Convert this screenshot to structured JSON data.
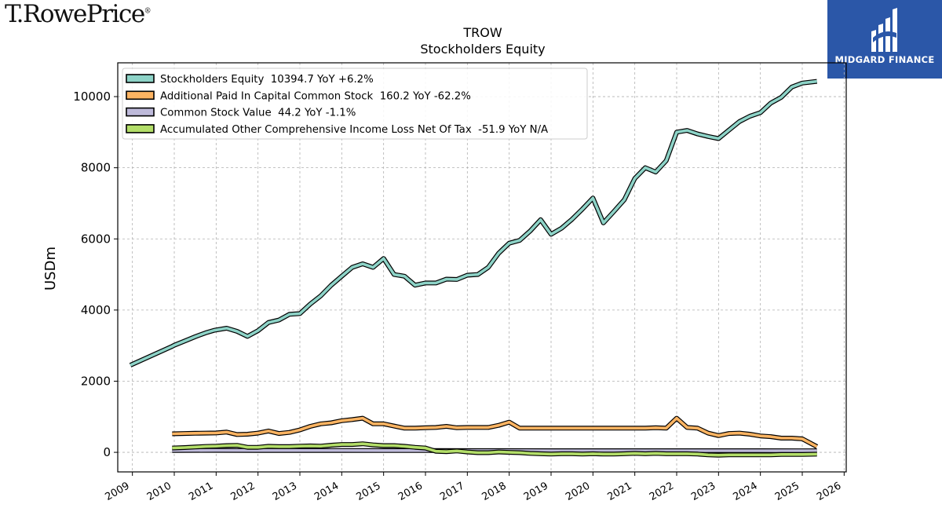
{
  "branding": {
    "left_logo": "T.RowePrice",
    "left_logo_mark": "®",
    "right_logo": "MIDGARD FINANCE"
  },
  "chart_data": {
    "type": "line",
    "title": "TROW",
    "subtitle": "Stockholders  Equity",
    "xlabel": "",
    "ylabel": "USDm",
    "xlim": [
      2008.65,
      2026.05
    ],
    "ylim": [
      -550,
      10950
    ],
    "xticks": [
      "2009",
      "2010",
      "2011",
      "2012",
      "2013",
      "2014",
      "2015",
      "2016",
      "2017",
      "2018",
      "2019",
      "2020",
      "2021",
      "2022",
      "2023",
      "2024",
      "2025",
      "2026"
    ],
    "yticks": [
      "0",
      "2000",
      "4000",
      "6000",
      "8000",
      "10000"
    ],
    "grid": true,
    "legend_position": "upper-left",
    "series": [
      {
        "name": "Stockholders Equity  10394.7 YoY +6.2%",
        "color": "#8dd3c7",
        "x": [
          2008.95,
          2009.95,
          2010.0,
          2010.25,
          2010.5,
          2010.75,
          2010.95,
          2011.25,
          2011.5,
          2011.75,
          2012.0,
          2012.25,
          2012.5,
          2012.75,
          2013.0,
          2013.25,
          2013.5,
          2013.75,
          2014.0,
          2014.25,
          2014.5,
          2014.75,
          2015.0,
          2015.25,
          2015.5,
          2015.75,
          2016.0,
          2016.25,
          2016.5,
          2016.75,
          2017.0,
          2017.25,
          2017.5,
          2017.75,
          2018.0,
          2018.25,
          2018.5,
          2018.75,
          2019.0,
          2019.25,
          2019.5,
          2019.75,
          2020.0,
          2020.25,
          2020.5,
          2020.75,
          2021.0,
          2021.25,
          2021.5,
          2021.75,
          2022.0,
          2022.25,
          2022.5,
          2022.75,
          2023.0,
          2023.25,
          2023.5,
          2023.75,
          2024.0,
          2024.25,
          2024.5,
          2024.75,
          2025.0,
          2025.35
        ],
        "y": [
          2450,
          2980,
          3010,
          3130,
          3250,
          3360,
          3430,
          3490,
          3400,
          3260,
          3420,
          3650,
          3720,
          3880,
          3900,
          4170,
          4400,
          4700,
          4950,
          5200,
          5300,
          5200,
          5450,
          5000,
          4950,
          4700,
          4760,
          4760,
          4870,
          4860,
          4980,
          5000,
          5200,
          5600,
          5880,
          5960,
          6220,
          6540,
          6130,
          6300,
          6550,
          6840,
          7150,
          6450,
          6770,
          7100,
          7700,
          8000,
          7880,
          8200,
          9000,
          9050,
          8950,
          8880,
          8820,
          9060,
          9300,
          9450,
          9550,
          9820,
          9980,
          10270,
          10380,
          10430
        ]
      },
      {
        "name": "Additional Paid In Capital Common Stock  160.2 YoY -62.2%",
        "color": "#fdb462",
        "x": [
          2009.95,
          2010.25,
          2010.5,
          2010.75,
          2011.0,
          2011.25,
          2011.5,
          2011.75,
          2012.0,
          2012.25,
          2012.5,
          2012.75,
          2013.0,
          2013.25,
          2013.5,
          2013.75,
          2014.0,
          2014.25,
          2014.5,
          2014.75,
          2015.0,
          2015.25,
          2015.5,
          2015.75,
          2016.0,
          2016.25,
          2016.5,
          2016.75,
          2017.0,
          2017.25,
          2017.5,
          2017.75,
          2018.0,
          2018.25,
          2018.5,
          2018.75,
          2019.0,
          2019.25,
          2019.5,
          2019.75,
          2020.0,
          2020.25,
          2020.5,
          2020.75,
          2021.0,
          2021.25,
          2021.5,
          2021.75,
          2022.0,
          2022.25,
          2022.5,
          2022.75,
          2023.0,
          2023.25,
          2023.5,
          2023.75,
          2024.0,
          2024.25,
          2024.5,
          2024.75,
          2025.0,
          2025.35
        ],
        "y": [
          520,
          530,
          535,
          540,
          545,
          570,
          500,
          510,
          540,
          600,
          530,
          560,
          630,
          730,
          800,
          830,
          890,
          920,
          960,
          800,
          800,
          740,
          680,
          680,
          690,
          700,
          730,
          690,
          700,
          700,
          700,
          760,
          850,
          680,
          680,
          680,
          680,
          680,
          680,
          680,
          680,
          680,
          680,
          680,
          680,
          680,
          690,
          680,
          960,
          700,
          680,
          540,
          470,
          530,
          540,
          510,
          460,
          440,
          400,
          400,
          380,
          160
        ]
      },
      {
        "name": "Common Stock Value  44.2 YoY -1.1%",
        "color": "#bebada",
        "x": [
          2009.95,
          2011.0,
          2012.0,
          2013.0,
          2014.0,
          2015.0,
          2016.0,
          2017.0,
          2018.0,
          2019.0,
          2020.0,
          2021.0,
          2022.0,
          2023.0,
          2024.0,
          2025.35
        ],
        "y": [
          52,
          54,
          52,
          53,
          52,
          51,
          50,
          49,
          48,
          47,
          46,
          46,
          45,
          45,
          45,
          44
        ]
      },
      {
        "name": "Accumulated Other Comprehensive Income Loss Net Of Tax  -51.9 YoY N/A",
        "color": "#b3de69",
        "x": [
          2009.95,
          2010.25,
          2010.5,
          2010.75,
          2011.0,
          2011.25,
          2011.5,
          2011.75,
          2012.0,
          2012.25,
          2012.5,
          2012.75,
          2013.0,
          2013.25,
          2013.5,
          2013.75,
          2014.0,
          2014.25,
          2014.5,
          2014.75,
          2015.0,
          2015.25,
          2015.5,
          2015.75,
          2016.0,
          2016.25,
          2016.5,
          2016.75,
          2017.0,
          2017.25,
          2017.5,
          2017.75,
          2018.0,
          2018.25,
          2018.5,
          2018.75,
          2019.0,
          2019.25,
          2019.5,
          2019.75,
          2020.0,
          2020.25,
          2020.5,
          2020.75,
          2021.0,
          2021.25,
          2021.5,
          2021.75,
          2022.0,
          2022.25,
          2022.5,
          2022.75,
          2023.0,
          2023.25,
          2023.5,
          2023.75,
          2024.0,
          2024.25,
          2024.5,
          2024.75,
          2025.0,
          2025.35
        ],
        "y": [
          120,
          135,
          150,
          165,
          175,
          190,
          195,
          140,
          140,
          170,
          160,
          160,
          175,
          180,
          175,
          200,
          220,
          220,
          240,
          210,
          190,
          190,
          170,
          140,
          120,
          30,
          20,
          40,
          10,
          -10,
          -10,
          10,
          0,
          -10,
          -30,
          -40,
          -50,
          -40,
          -40,
          -50,
          -40,
          -50,
          -50,
          -40,
          -30,
          -40,
          -30,
          -40,
          -40,
          -40,
          -50,
          -70,
          -80,
          -70,
          -70,
          -70,
          -70,
          -70,
          -60,
          -60,
          -60,
          -52
        ]
      }
    ]
  }
}
